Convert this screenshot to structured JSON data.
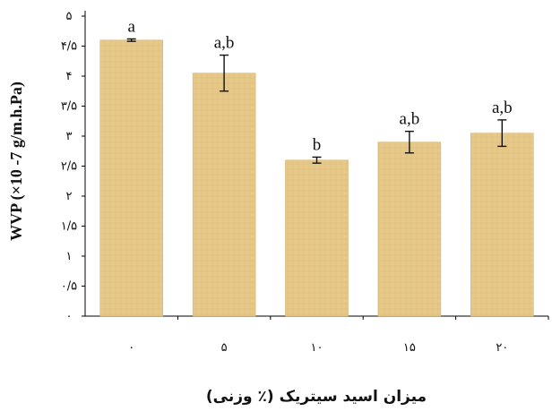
{
  "chart_data": {
    "type": "bar",
    "categories": [
      "۰",
      "۵",
      "۱۰",
      "۱۵",
      "۲۰"
    ],
    "values": [
      4.6,
      4.05,
      2.6,
      2.9,
      3.05
    ],
    "errors": [
      0.02,
      0.3,
      0.05,
      0.18,
      0.22
    ],
    "significance_labels": [
      "a",
      "a,b",
      "b",
      "a,b",
      "a,b"
    ],
    "ylim": [
      0,
      5
    ],
    "yticks": [
      0,
      0.5,
      1,
      1.5,
      2,
      2.5,
      3,
      3.5,
      4,
      4.5,
      5
    ],
    "ytick_labels": [
      "۰",
      "۰/۵",
      "۱",
      "۱/۵",
      "۲",
      "۲/۵",
      "۳",
      "۳/۵",
      "۴",
      "۴/۵",
      "۵"
    ],
    "ylabel": "WVP (×10 -7 g/m.h.Pa)",
    "xlabel": "میزان اسید سیتریک (٪ وزنی)",
    "bar_color": "#E6C98A",
    "bar_texture_color": "#D9B56A",
    "grid": false,
    "legend": "none"
  }
}
